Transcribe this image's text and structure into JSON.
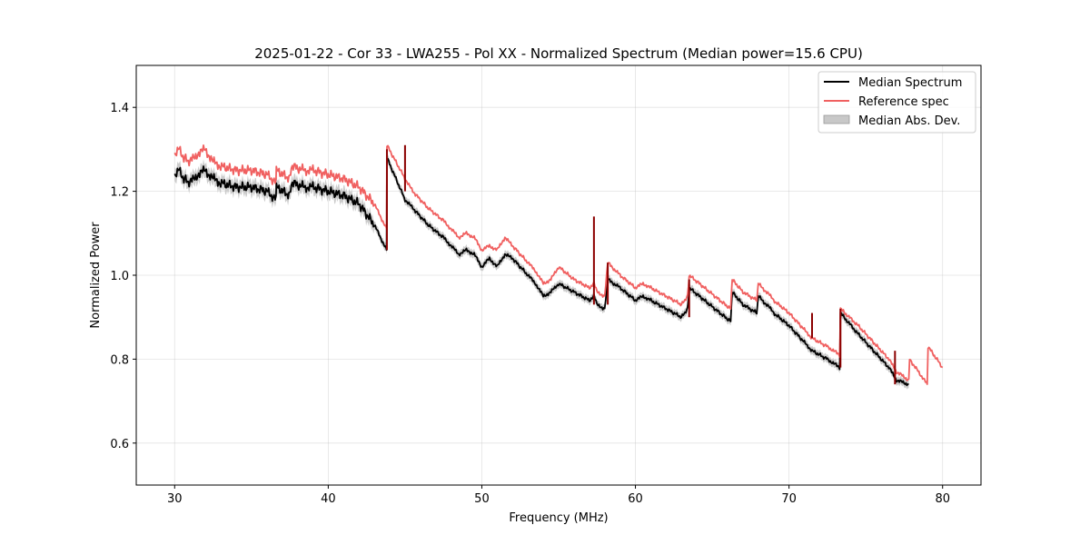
{
  "chart_data": {
    "type": "line",
    "title": "2025-01-22 - Cor 33 - LWA255 - Pol XX - Normalized Spectrum (Median power=15.6 CPU)",
    "xlabel": "Frequency (MHz)",
    "ylabel": "Normalized Power",
    "xlim": [
      27.5,
      82.5
    ],
    "ylim": [
      0.5,
      1.5
    ],
    "xticks": [
      30,
      40,
      50,
      60,
      70,
      80
    ],
    "yticks": [
      0.6,
      0.8,
      1.0,
      1.2,
      1.4
    ],
    "xtick_labels": [
      "30",
      "40",
      "50",
      "60",
      "70",
      "80"
    ],
    "ytick_labels": [
      "0.6",
      "0.8",
      "1.0",
      "1.2",
      "1.4"
    ],
    "grid": true,
    "legend_position": "top-right",
    "series": [
      {
        "name": "Median Spectrum",
        "color": "#000000",
        "x": [
          30.0,
          30.3,
          30.6,
          31.0,
          31.5,
          32.0,
          32.5,
          33.0,
          34.0,
          35.0,
          36.0,
          36.6,
          36.62,
          37.5,
          37.6,
          38.5,
          39.0,
          40.0,
          41.0,
          42.0,
          43.0,
          43.8,
          43.82,
          45.0,
          45.5,
          46.5,
          47.5,
          48.0,
          48.5,
          49.0,
          49.5,
          50.0,
          50.5,
          51.0,
          51.5,
          52.0,
          53.0,
          53.5,
          54.0,
          54.5,
          55.0,
          56.0,
          57.0,
          57.3,
          57.5,
          58.0,
          58.2,
          59.0,
          60.0,
          60.5,
          61.0,
          62.0,
          63.0,
          63.4,
          63.5,
          64.5,
          65.5,
          66.2,
          66.3,
          67.0,
          67.9,
          68.0,
          68.8,
          69.0,
          70.0,
          71.0,
          71.5,
          72.5,
          73.3,
          73.35,
          74.5,
          75.5,
          76.5,
          77.0,
          77.8
        ],
        "values": [
          1.24,
          1.25,
          1.23,
          1.22,
          1.24,
          1.25,
          1.23,
          1.22,
          1.21,
          1.21,
          1.2,
          1.18,
          1.21,
          1.19,
          1.22,
          1.21,
          1.21,
          1.2,
          1.19,
          1.17,
          1.12,
          1.06,
          1.28,
          1.18,
          1.16,
          1.12,
          1.09,
          1.07,
          1.05,
          1.06,
          1.05,
          1.02,
          1.04,
          1.02,
          1.05,
          1.04,
          1.0,
          0.98,
          0.95,
          0.96,
          0.98,
          0.96,
          0.94,
          0.95,
          0.93,
          0.92,
          0.99,
          0.97,
          0.94,
          0.95,
          0.94,
          0.92,
          0.9,
          0.92,
          0.97,
          0.94,
          0.91,
          0.89,
          0.96,
          0.93,
          0.91,
          0.95,
          0.92,
          0.91,
          0.88,
          0.84,
          0.82,
          0.8,
          0.78,
          0.91,
          0.86,
          0.82,
          0.78,
          0.75,
          0.74
        ],
        "band_width": 0.012
      },
      {
        "name": "Reference spec",
        "color": "#f06060",
        "x": [
          30.0,
          30.3,
          30.6,
          31.0,
          31.5,
          32.0,
          32.5,
          33.0,
          34.0,
          35.0,
          36.0,
          36.6,
          36.62,
          37.5,
          37.6,
          38.5,
          39.0,
          40.0,
          41.0,
          42.0,
          43.0,
          43.8,
          43.82,
          45.0,
          45.5,
          46.5,
          47.5,
          48.0,
          48.5,
          49.0,
          49.5,
          50.0,
          50.5,
          51.0,
          51.5,
          52.0,
          53.0,
          53.5,
          54.0,
          54.5,
          55.0,
          56.0,
          57.0,
          57.3,
          57.5,
          58.0,
          58.2,
          59.0,
          60.0,
          60.5,
          61.0,
          62.0,
          63.0,
          63.4,
          63.5,
          64.5,
          65.5,
          66.2,
          66.3,
          67.0,
          67.9,
          68.0,
          68.8,
          69.0,
          70.0,
          71.0,
          71.5,
          72.5,
          73.3,
          73.35,
          74.5,
          75.5,
          76.5,
          77.0,
          77.8,
          77.85,
          79.0,
          79.05,
          80.0
        ],
        "values": [
          1.29,
          1.3,
          1.28,
          1.27,
          1.29,
          1.3,
          1.27,
          1.26,
          1.25,
          1.25,
          1.24,
          1.22,
          1.25,
          1.23,
          1.26,
          1.25,
          1.25,
          1.24,
          1.23,
          1.21,
          1.17,
          1.11,
          1.31,
          1.23,
          1.2,
          1.16,
          1.13,
          1.11,
          1.09,
          1.1,
          1.09,
          1.06,
          1.07,
          1.06,
          1.09,
          1.07,
          1.03,
          1.01,
          0.98,
          0.99,
          1.02,
          0.99,
          0.97,
          0.98,
          0.96,
          0.95,
          1.03,
          1.0,
          0.97,
          0.98,
          0.97,
          0.95,
          0.93,
          0.95,
          1.0,
          0.97,
          0.94,
          0.92,
          0.99,
          0.96,
          0.94,
          0.98,
          0.95,
          0.94,
          0.91,
          0.87,
          0.85,
          0.83,
          0.81,
          0.92,
          0.88,
          0.84,
          0.8,
          0.77,
          0.75,
          0.8,
          0.74,
          0.83,
          0.78
        ]
      },
      {
        "name": "Median Abs. Dev.",
        "color": "#c8c8c8",
        "type": "band"
      }
    ],
    "spikes": [
      {
        "x": 43.82,
        "y0": 1.06,
        "y1": 1.3
      },
      {
        "x": 45.0,
        "y0": 1.2,
        "y1": 1.31
      },
      {
        "x": 57.3,
        "y0": 0.93,
        "y1": 1.14
      },
      {
        "x": 58.2,
        "y0": 0.93,
        "y1": 1.03
      },
      {
        "x": 63.5,
        "y0": 0.9,
        "y1": 0.99
      },
      {
        "x": 71.5,
        "y0": 0.85,
        "y1": 0.91
      },
      {
        "x": 73.35,
        "y0": 0.78,
        "y1": 0.92
      },
      {
        "x": 76.9,
        "y0": 0.74,
        "y1": 0.82
      }
    ]
  }
}
